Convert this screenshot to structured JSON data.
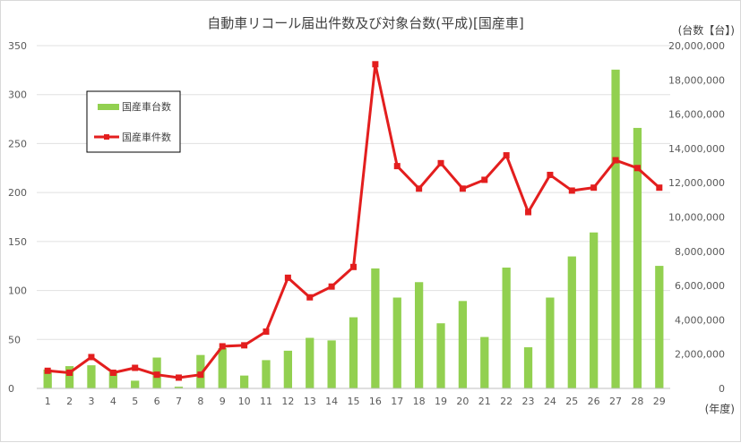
{
  "chart_data": {
    "type": "bar",
    "title": "自動車リコール届出件数及び対象台数(平成)[国産車]",
    "right_axis_unit": "(台数【台】)",
    "x_axis_unit": "(年度)",
    "categories": [
      "1",
      "2",
      "3",
      "4",
      "5",
      "6",
      "7",
      "8",
      "9",
      "10",
      "11",
      "12",
      "13",
      "14",
      "15",
      "16",
      "17",
      "18",
      "19",
      "20",
      "21",
      "22",
      "23",
      "24",
      "25",
      "26",
      "27",
      "28",
      "29"
    ],
    "left_ylim": [
      0,
      350
    ],
    "left_ticks": [
      "0",
      "50",
      "100",
      "150",
      "200",
      "250",
      "300",
      "350"
    ],
    "left_tick_values": [
      0,
      50,
      100,
      150,
      200,
      250,
      300,
      350
    ],
    "right_ylim": [
      0,
      20000000
    ],
    "right_ticks": [
      "0",
      "2,000,000",
      "4,000,000",
      "6,000,000",
      "8,000,000",
      "10,000,000",
      "12,000,000",
      "14,000,000",
      "16,000,000",
      "18,000,000",
      "20,000,000"
    ],
    "right_tick_values": [
      0,
      2000000,
      4000000,
      6000000,
      8000000,
      10000000,
      12000000,
      14000000,
      16000000,
      18000000,
      20000000
    ],
    "grid": "horizontal",
    "legend_position": "upper-left",
    "series": [
      {
        "name": "国産車台数",
        "type": "bar",
        "axis": "right",
        "color": "#92d050",
        "values": [
          1100000,
          1300000,
          1350000,
          950000,
          450000,
          1800000,
          100000,
          1950000,
          2350000,
          750000,
          1650000,
          2200000,
          2950000,
          2800000,
          4150000,
          7000000,
          5300000,
          6200000,
          3800000,
          5100000,
          3000000,
          7050000,
          2400000,
          5300000,
          7700000,
          9100000,
          18600000,
          15200000,
          7150000
        ]
      },
      {
        "name": "国産車件数",
        "type": "line",
        "axis": "left",
        "color": "#e31e1e",
        "values": [
          18,
          16,
          32,
          16,
          21,
          14,
          11,
          14,
          43,
          44,
          58,
          113,
          93,
          104,
          124,
          331,
          227,
          204,
          230,
          204,
          213,
          238,
          180,
          218,
          202,
          205,
          233,
          225,
          205
        ]
      }
    ]
  }
}
